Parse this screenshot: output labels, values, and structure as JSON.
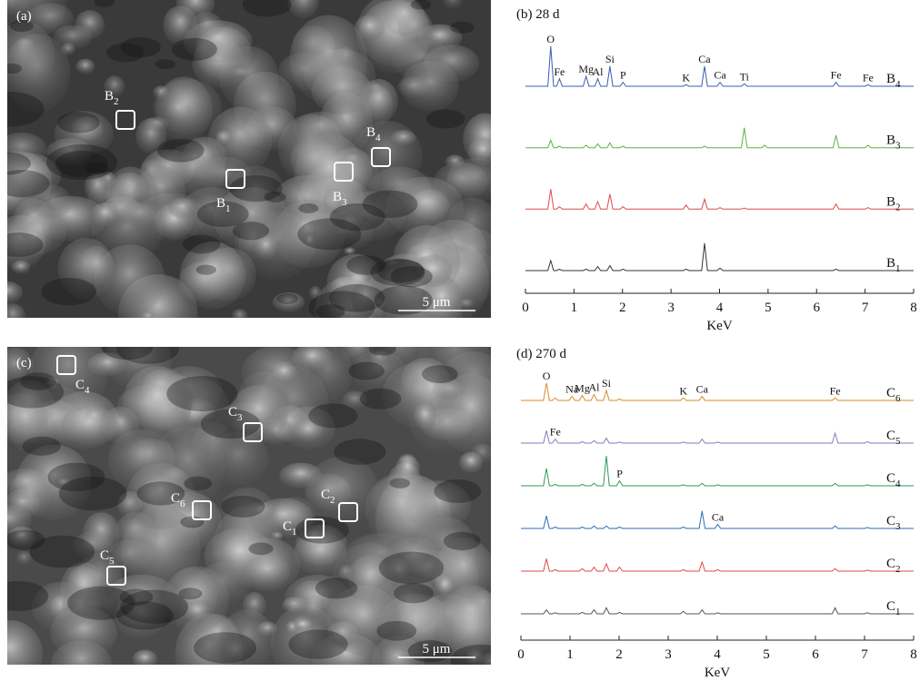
{
  "images": [
    {
      "label": "(a)",
      "scale_bar": "5 μm",
      "markers": [
        "B2",
        "B1",
        "B3",
        "B4"
      ]
    },
    {
      "label": "(c)",
      "scale_bar": "5 μm",
      "markers": [
        "C4",
        "C3",
        "C6",
        "C2",
        "C1",
        "C5"
      ]
    }
  ],
  "chart_data": [
    {
      "type": "line",
      "title": "(b) 28 d",
      "x_label": "KeV",
      "x": [
        0,
        0.46,
        0.52,
        0.58,
        0.64,
        0.7,
        0.76,
        0.98,
        1.04,
        1.1,
        1.19,
        1.25,
        1.31,
        1.43,
        1.49,
        1.55,
        1.68,
        1.74,
        1.8,
        1.95,
        2.01,
        2.07,
        3.25,
        3.31,
        3.37,
        3.63,
        3.69,
        3.75,
        3.95,
        4.01,
        4.07,
        4.45,
        4.51,
        4.57,
        4.87,
        4.93,
        4.99,
        6.34,
        6.4,
        6.46,
        7.0,
        7.06,
        7.12,
        8
      ],
      "xlim": [
        0,
        8
      ],
      "xticks": [
        0,
        1,
        2,
        3,
        4,
        5,
        6,
        7,
        8
      ],
      "series": [
        {
          "name": "B4",
          "color": "#3a5fb0",
          "values": [
            0,
            0,
            80,
            0,
            0,
            15,
            0,
            0,
            0,
            0,
            0,
            20,
            0,
            0,
            15,
            0,
            0,
            40,
            0,
            0,
            8,
            0,
            0,
            3,
            0,
            0,
            40,
            0,
            0,
            8,
            0,
            0,
            5,
            0,
            0,
            0,
            0,
            0,
            8,
            0,
            0,
            3,
            0,
            0
          ]
        },
        {
          "name": "B3",
          "color": "#5db34a",
          "values": [
            0,
            0,
            15,
            0,
            0,
            3,
            0,
            0,
            0,
            0,
            0,
            5,
            0,
            0,
            8,
            0,
            0,
            10,
            0,
            0,
            3,
            0,
            0,
            0,
            0,
            0,
            3,
            0,
            0,
            0,
            0,
            0,
            40,
            0,
            0,
            5,
            0,
            0,
            25,
            0,
            0,
            5,
            0,
            0
          ]
        },
        {
          "name": "B2",
          "color": "#e04848",
          "values": [
            0,
            0,
            40,
            0,
            0,
            5,
            0,
            0,
            0,
            0,
            0,
            10,
            0,
            0,
            15,
            0,
            0,
            30,
            0,
            0,
            5,
            0,
            0,
            8,
            0,
            0,
            20,
            0,
            0,
            3,
            0,
            0,
            2,
            0,
            0,
            0,
            0,
            0,
            10,
            0,
            0,
            3,
            0,
            0
          ]
        },
        {
          "name": "B1",
          "color": "#333333",
          "values": [
            0,
            0,
            20,
            0,
            0,
            3,
            0,
            0,
            0,
            0,
            0,
            3,
            0,
            0,
            8,
            0,
            0,
            10,
            0,
            0,
            3,
            0,
            0,
            3,
            0,
            0,
            55,
            0,
            0,
            5,
            0,
            0,
            0,
            0,
            0,
            0,
            0,
            0,
            3,
            0,
            0,
            0,
            0,
            0
          ]
        }
      ],
      "annotations": [
        {
          "text": "O",
          "x": 0.52,
          "series": 0
        },
        {
          "text": "Fe",
          "x": 0.7,
          "series": 0
        },
        {
          "text": "Mg",
          "x": 1.25,
          "series": 0
        },
        {
          "text": "Al",
          "x": 1.49,
          "series": 0
        },
        {
          "text": "Si",
          "x": 1.74,
          "series": 0
        },
        {
          "text": "P",
          "x": 2.01,
          "series": 0
        },
        {
          "text": "K",
          "x": 3.31,
          "series": 0
        },
        {
          "text": "Ca",
          "x": 3.69,
          "series": 0
        },
        {
          "text": "Ca",
          "x": 4.01,
          "series": 0
        },
        {
          "text": "Ti",
          "x": 4.51,
          "series": 0
        },
        {
          "text": "Fe",
          "x": 6.4,
          "series": 0
        },
        {
          "text": "Fe",
          "x": 7.06,
          "series": 0
        }
      ]
    },
    {
      "type": "line",
      "title": "(d) 270 d",
      "x_label": "KeV",
      "x": [
        0,
        0.46,
        0.52,
        0.58,
        0.64,
        0.7,
        0.76,
        0.98,
        1.04,
        1.1,
        1.19,
        1.25,
        1.31,
        1.43,
        1.49,
        1.55,
        1.68,
        1.74,
        1.8,
        1.95,
        2.01,
        2.07,
        3.25,
        3.31,
        3.37,
        3.63,
        3.69,
        3.75,
        3.95,
        4.01,
        4.07,
        4.45,
        4.51,
        4.57,
        4.87,
        4.93,
        4.99,
        6.34,
        6.4,
        6.46,
        7.0,
        7.06,
        7.12,
        8
      ],
      "xlim": [
        0,
        8
      ],
      "xticks": [
        0,
        1,
        2,
        3,
        4,
        5,
        6,
        7,
        8
      ],
      "series": [
        {
          "name": "C6",
          "color": "#d98a2a",
          "values": [
            0,
            0,
            35,
            0,
            0,
            5,
            0,
            0,
            8,
            0,
            0,
            10,
            0,
            0,
            12,
            0,
            0,
            20,
            0,
            0,
            3,
            0,
            0,
            5,
            0,
            0,
            8,
            0,
            0,
            0,
            0,
            0,
            0,
            0,
            0,
            0,
            0,
            0,
            5,
            0,
            0,
            0,
            0,
            0
          ]
        },
        {
          "name": "C5",
          "color": "#8a7ab8",
          "values": [
            0,
            0,
            25,
            0,
            0,
            8,
            0,
            0,
            0,
            0,
            0,
            3,
            0,
            0,
            5,
            0,
            0,
            10,
            0,
            0,
            2,
            0,
            0,
            2,
            0,
            0,
            8,
            0,
            0,
            2,
            0,
            0,
            0,
            0,
            0,
            0,
            0,
            0,
            20,
            0,
            0,
            3,
            0,
            0
          ]
        },
        {
          "name": "C4",
          "color": "#2e9a5a",
          "values": [
            0,
            0,
            35,
            0,
            0,
            3,
            0,
            0,
            0,
            0,
            0,
            3,
            0,
            0,
            5,
            0,
            0,
            60,
            0,
            0,
            10,
            0,
            0,
            2,
            0,
            0,
            5,
            0,
            0,
            2,
            0,
            0,
            0,
            0,
            0,
            0,
            0,
            0,
            5,
            0,
            0,
            2,
            0,
            0
          ]
        },
        {
          "name": "C3",
          "color": "#2a6db0",
          "values": [
            0,
            0,
            25,
            0,
            0,
            3,
            0,
            0,
            0,
            0,
            0,
            3,
            0,
            0,
            5,
            0,
            0,
            5,
            0,
            0,
            3,
            0,
            0,
            3,
            0,
            0,
            35,
            0,
            0,
            8,
            0,
            0,
            0,
            0,
            0,
            0,
            0,
            0,
            5,
            0,
            0,
            2,
            0,
            0
          ]
        },
        {
          "name": "C2",
          "color": "#e04848",
          "values": [
            0,
            0,
            25,
            0,
            0,
            3,
            0,
            0,
            0,
            0,
            0,
            5,
            0,
            0,
            8,
            0,
            0,
            15,
            0,
            0,
            8,
            0,
            0,
            3,
            0,
            0,
            18,
            0,
            0,
            3,
            0,
            0,
            0,
            0,
            0,
            0,
            0,
            0,
            5,
            0,
            0,
            2,
            0,
            0
          ]
        },
        {
          "name": "C1",
          "color": "#555555",
          "values": [
            0,
            0,
            8,
            0,
            0,
            2,
            0,
            0,
            0,
            0,
            0,
            3,
            0,
            0,
            8,
            0,
            0,
            12,
            0,
            0,
            3,
            0,
            0,
            5,
            0,
            0,
            8,
            0,
            0,
            2,
            0,
            0,
            0,
            0,
            0,
            0,
            0,
            0,
            12,
            0,
            0,
            2,
            0,
            0
          ]
        }
      ],
      "annotations": [
        {
          "text": "O",
          "x": 0.52,
          "series": 0
        },
        {
          "text": "Na",
          "x": 1.04,
          "series": 0
        },
        {
          "text": "Mg",
          "x": 1.25,
          "series": 0
        },
        {
          "text": "Al",
          "x": 1.49,
          "series": 0
        },
        {
          "text": "Si",
          "x": 1.74,
          "series": 0
        },
        {
          "text": "K",
          "x": 3.31,
          "series": 0
        },
        {
          "text": "Ca",
          "x": 3.69,
          "series": 0
        },
        {
          "text": "Fe",
          "x": 6.4,
          "series": 0
        },
        {
          "text": "Fe",
          "x": 0.7,
          "series": 1
        },
        {
          "text": "P",
          "x": 2.01,
          "series": 2
        },
        {
          "text": "Ca",
          "x": 4.01,
          "series": 3
        }
      ]
    }
  ]
}
